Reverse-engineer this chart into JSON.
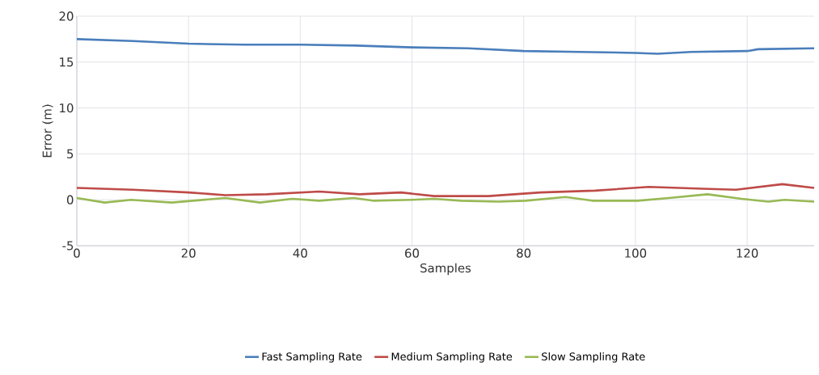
{
  "chart_data": {
    "type": "line",
    "xlabel": "Samples",
    "ylabel": "Error (m)",
    "xlim": [
      0,
      132
    ],
    "ylim": [
      -5,
      20
    ],
    "xticks": [
      0,
      20,
      40,
      60,
      80,
      100,
      120
    ],
    "yticks": [
      -5,
      0,
      5,
      10,
      15,
      20
    ],
    "grid": true,
    "legend": "bottom",
    "marker": "none",
    "line_style": "solid",
    "series": [
      {
        "name": "Fast Sampling Rate",
        "color": "#4a7ebb",
        "x": [
          0,
          10,
          20,
          30,
          40,
          50,
          60,
          70,
          80,
          90,
          100,
          104,
          110,
          120,
          122,
          132
        ],
        "values": [
          17.5,
          17.3,
          17.0,
          16.9,
          16.9,
          16.8,
          16.6,
          16.5,
          16.2,
          16.1,
          16.0,
          15.9,
          16.1,
          16.2,
          16.4,
          16.5
        ]
      },
      {
        "name": "Medium Sampling Rate",
        "color": "#be4b48",
        "x": [
          0,
          10,
          20,
          26.6,
          34,
          43.4,
          50.6,
          58,
          64,
          73.7,
          83,
          92.8,
          102.4,
          112,
          118,
          126.3,
          132
        ],
        "values": [
          1.3,
          1.1,
          0.8,
          0.5,
          0.6,
          0.9,
          0.6,
          0.8,
          0.4,
          0.4,
          0.8,
          1.0,
          1.4,
          1.2,
          1.1,
          1.7,
          1.3
        ]
      },
      {
        "name": "Slow Sampling Rate",
        "color": "#98b954",
        "x": [
          0,
          5,
          9.7,
          17,
          26.6,
          32.8,
          38.6,
          43.4,
          49.6,
          53,
          60,
          64,
          68.8,
          75.5,
          80.3,
          87.5,
          92.3,
          100.4,
          106,
          112.9,
          119,
          123.8,
          126.7,
          132
        ],
        "values": [
          0.2,
          -0.3,
          0,
          -0.3,
          0.2,
          -0.3,
          0.1,
          -0.1,
          0.2,
          -0.1,
          0,
          0.1,
          -0.1,
          -0.2,
          -0.1,
          0.3,
          -0.1,
          -0.1,
          0.2,
          0.6,
          0.1,
          -0.2,
          0,
          -0.2
        ]
      }
    ]
  }
}
